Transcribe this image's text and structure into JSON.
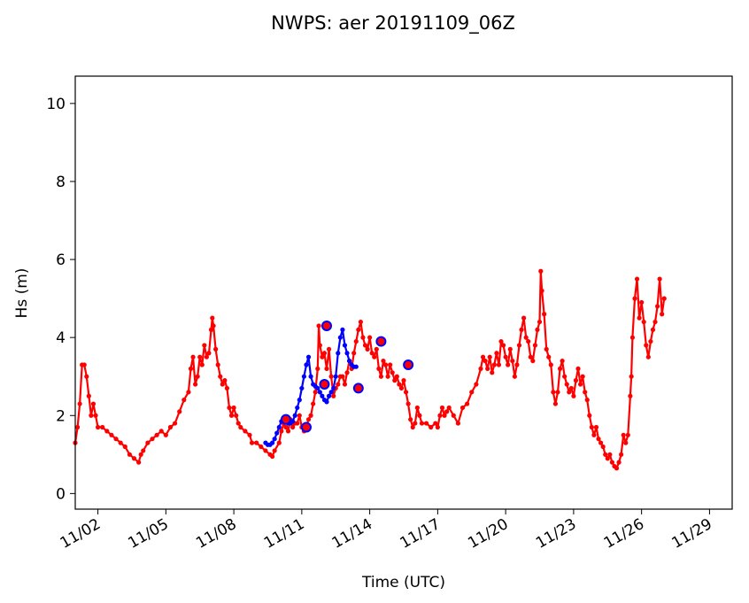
{
  "chart_data": {
    "type": "line",
    "title": "NWPS: aer 20191109_06Z",
    "xlabel": "Time (UTC)",
    "ylabel": "Hs (m)",
    "x_start": "2019-11-01",
    "xlim": [
      "2019-11-01",
      "2019-11-30"
    ],
    "ylim": [
      -0.4,
      10.7
    ],
    "x_ticks": [
      "11/02",
      "11/05",
      "11/08",
      "11/11",
      "11/14",
      "11/17",
      "11/20",
      "11/23",
      "11/26",
      "11/29"
    ],
    "y_ticks": [
      0,
      2,
      4,
      6,
      8,
      10
    ],
    "grid": false,
    "series": [
      {
        "color": "#ff0000",
        "marker": "small-dot",
        "points": [
          [
            0.0,
            1.3
          ],
          [
            0.1,
            1.7
          ],
          [
            0.2,
            2.3
          ],
          [
            0.3,
            3.3
          ],
          [
            0.4,
            3.3
          ],
          [
            0.5,
            3.0
          ],
          [
            0.6,
            2.5
          ],
          [
            0.7,
            2.0
          ],
          [
            0.8,
            2.3
          ],
          [
            0.9,
            2.0
          ],
          [
            1.0,
            1.7
          ],
          [
            1.2,
            1.7
          ],
          [
            1.4,
            1.6
          ],
          [
            1.6,
            1.5
          ],
          [
            1.8,
            1.4
          ],
          [
            2.0,
            1.3
          ],
          [
            2.2,
            1.2
          ],
          [
            2.4,
            1.0
          ],
          [
            2.6,
            0.9
          ],
          [
            2.8,
            0.8
          ],
          [
            2.9,
            1.0
          ],
          [
            3.0,
            1.1
          ],
          [
            3.2,
            1.3
          ],
          [
            3.4,
            1.4
          ],
          [
            3.6,
            1.5
          ],
          [
            3.8,
            1.6
          ],
          [
            4.0,
            1.5
          ],
          [
            4.2,
            1.7
          ],
          [
            4.4,
            1.8
          ],
          [
            4.6,
            2.1
          ],
          [
            4.8,
            2.4
          ],
          [
            5.0,
            2.6
          ],
          [
            5.1,
            3.2
          ],
          [
            5.2,
            3.5
          ],
          [
            5.3,
            2.8
          ],
          [
            5.4,
            3.0
          ],
          [
            5.5,
            3.5
          ],
          [
            5.6,
            3.3
          ],
          [
            5.7,
            3.8
          ],
          [
            5.8,
            3.5
          ],
          [
            5.9,
            3.6
          ],
          [
            6.0,
            4.2
          ],
          [
            6.05,
            4.5
          ],
          [
            6.1,
            4.3
          ],
          [
            6.2,
            3.7
          ],
          [
            6.3,
            3.3
          ],
          [
            6.4,
            3.0
          ],
          [
            6.5,
            2.8
          ],
          [
            6.6,
            2.9
          ],
          [
            6.7,
            2.7
          ],
          [
            6.8,
            2.2
          ],
          [
            6.9,
            2.0
          ],
          [
            7.0,
            2.2
          ],
          [
            7.1,
            2.0
          ],
          [
            7.2,
            1.8
          ],
          [
            7.3,
            1.7
          ],
          [
            7.5,
            1.6
          ],
          [
            7.7,
            1.5
          ],
          [
            7.8,
            1.3
          ],
          [
            8.0,
            1.3
          ],
          [
            8.2,
            1.2
          ],
          [
            8.4,
            1.1
          ],
          [
            8.6,
            1.0
          ],
          [
            8.7,
            0.95
          ],
          [
            8.8,
            1.1
          ],
          [
            9.0,
            1.3
          ],
          [
            9.1,
            1.6
          ],
          [
            9.2,
            1.8
          ],
          [
            9.3,
            1.7
          ],
          [
            9.4,
            1.6
          ],
          [
            9.5,
            1.9
          ],
          [
            9.6,
            1.7
          ],
          [
            9.7,
            1.8
          ],
          [
            9.8,
            1.8
          ],
          [
            9.9,
            2.0
          ],
          [
            10.0,
            1.7
          ],
          [
            10.1,
            1.6
          ],
          [
            10.2,
            1.7
          ],
          [
            10.3,
            1.9
          ],
          [
            10.4,
            2.0
          ],
          [
            10.5,
            2.3
          ],
          [
            10.6,
            2.6
          ],
          [
            10.7,
            3.2
          ],
          [
            10.75,
            4.3
          ],
          [
            10.8,
            3.8
          ],
          [
            10.9,
            3.5
          ],
          [
            11.0,
            3.6
          ],
          [
            11.1,
            3.2
          ],
          [
            11.2,
            3.7
          ],
          [
            11.3,
            3.0
          ],
          [
            11.4,
            2.5
          ],
          [
            11.5,
            2.7
          ],
          [
            11.6,
            2.8
          ],
          [
            11.7,
            3.0
          ],
          [
            11.8,
            3.0
          ],
          [
            11.9,
            2.8
          ],
          [
            12.0,
            3.1
          ],
          [
            12.1,
            3.4
          ],
          [
            12.2,
            3.2
          ],
          [
            12.3,
            3.6
          ],
          [
            12.4,
            3.9
          ],
          [
            12.5,
            4.2
          ],
          [
            12.6,
            4.4
          ],
          [
            12.7,
            4.0
          ],
          [
            12.8,
            3.8
          ],
          [
            12.9,
            3.7
          ],
          [
            13.0,
            4.0
          ],
          [
            13.1,
            3.6
          ],
          [
            13.2,
            3.5
          ],
          [
            13.3,
            3.7
          ],
          [
            13.4,
            3.2
          ],
          [
            13.5,
            3.0
          ],
          [
            13.6,
            3.4
          ],
          [
            13.7,
            3.3
          ],
          [
            13.8,
            3.0
          ],
          [
            13.9,
            3.3
          ],
          [
            14.0,
            3.1
          ],
          [
            14.1,
            2.9
          ],
          [
            14.2,
            3.0
          ],
          [
            14.3,
            2.8
          ],
          [
            14.4,
            2.7
          ],
          [
            14.5,
            2.9
          ],
          [
            14.6,
            2.6
          ],
          [
            14.7,
            2.3
          ],
          [
            14.8,
            1.9
          ],
          [
            14.9,
            1.7
          ],
          [
            15.0,
            1.8
          ],
          [
            15.1,
            2.2
          ],
          [
            15.2,
            2.0
          ],
          [
            15.3,
            1.8
          ],
          [
            15.5,
            1.8
          ],
          [
            15.7,
            1.7
          ],
          [
            15.9,
            1.8
          ],
          [
            16.0,
            1.7
          ],
          [
            16.1,
            2.0
          ],
          [
            16.2,
            2.2
          ],
          [
            16.3,
            2.0
          ],
          [
            16.4,
            2.1
          ],
          [
            16.5,
            2.2
          ],
          [
            16.7,
            2.0
          ],
          [
            16.9,
            1.8
          ],
          [
            17.1,
            2.2
          ],
          [
            17.3,
            2.3
          ],
          [
            17.5,
            2.6
          ],
          [
            17.7,
            2.8
          ],
          [
            17.9,
            3.2
          ],
          [
            18.0,
            3.5
          ],
          [
            18.1,
            3.4
          ],
          [
            18.2,
            3.2
          ],
          [
            18.3,
            3.5
          ],
          [
            18.4,
            3.1
          ],
          [
            18.5,
            3.3
          ],
          [
            18.6,
            3.6
          ],
          [
            18.7,
            3.3
          ],
          [
            18.8,
            3.9
          ],
          [
            18.9,
            3.8
          ],
          [
            19.0,
            3.5
          ],
          [
            19.1,
            3.3
          ],
          [
            19.2,
            3.7
          ],
          [
            19.3,
            3.4
          ],
          [
            19.4,
            3.0
          ],
          [
            19.5,
            3.3
          ],
          [
            19.6,
            3.8
          ],
          [
            19.7,
            4.2
          ],
          [
            19.8,
            4.5
          ],
          [
            19.9,
            4.0
          ],
          [
            20.0,
            3.9
          ],
          [
            20.1,
            3.5
          ],
          [
            20.2,
            3.4
          ],
          [
            20.3,
            3.8
          ],
          [
            20.4,
            4.2
          ],
          [
            20.5,
            4.4
          ],
          [
            20.55,
            5.7
          ],
          [
            20.6,
            5.2
          ],
          [
            20.7,
            4.6
          ],
          [
            20.8,
            3.7
          ],
          [
            20.9,
            3.5
          ],
          [
            21.0,
            3.3
          ],
          [
            21.1,
            2.6
          ],
          [
            21.2,
            2.3
          ],
          [
            21.3,
            2.6
          ],
          [
            21.4,
            3.2
          ],
          [
            21.5,
            3.4
          ],
          [
            21.6,
            3.0
          ],
          [
            21.7,
            2.8
          ],
          [
            21.8,
            2.6
          ],
          [
            21.9,
            2.7
          ],
          [
            22.0,
            2.5
          ],
          [
            22.1,
            2.9
          ],
          [
            22.2,
            3.2
          ],
          [
            22.3,
            2.8
          ],
          [
            22.4,
            3.0
          ],
          [
            22.5,
            2.6
          ],
          [
            22.6,
            2.4
          ],
          [
            22.7,
            2.0
          ],
          [
            22.8,
            1.7
          ],
          [
            22.9,
            1.5
          ],
          [
            23.0,
            1.7
          ],
          [
            23.1,
            1.4
          ],
          [
            23.2,
            1.3
          ],
          [
            23.3,
            1.2
          ],
          [
            23.4,
            1.0
          ],
          [
            23.5,
            0.9
          ],
          [
            23.6,
            1.0
          ],
          [
            23.7,
            0.8
          ],
          [
            23.8,
            0.7
          ],
          [
            23.9,
            0.65
          ],
          [
            24.0,
            0.8
          ],
          [
            24.1,
            1.0
          ],
          [
            24.2,
            1.5
          ],
          [
            24.3,
            1.3
          ],
          [
            24.4,
            1.5
          ],
          [
            24.5,
            2.5
          ],
          [
            24.55,
            3.0
          ],
          [
            24.6,
            4.0
          ],
          [
            24.7,
            5.0
          ],
          [
            24.8,
            5.5
          ],
          [
            24.9,
            4.5
          ],
          [
            25.0,
            4.9
          ],
          [
            25.1,
            4.4
          ],
          [
            25.2,
            3.8
          ],
          [
            25.3,
            3.5
          ],
          [
            25.4,
            3.9
          ],
          [
            25.5,
            4.2
          ],
          [
            25.6,
            4.4
          ],
          [
            25.7,
            4.8
          ],
          [
            25.8,
            5.5
          ],
          [
            25.9,
            4.6
          ],
          [
            26.0,
            5.0
          ]
        ]
      },
      {
        "color": "#0000ff",
        "marker": "small-dot",
        "points": [
          [
            8.4,
            1.3
          ],
          [
            8.5,
            1.25
          ],
          [
            8.6,
            1.25
          ],
          [
            8.7,
            1.3
          ],
          [
            8.8,
            1.4
          ],
          [
            8.9,
            1.55
          ],
          [
            9.0,
            1.7
          ],
          [
            9.1,
            1.85
          ],
          [
            9.2,
            1.9
          ],
          [
            9.3,
            1.85
          ],
          [
            9.4,
            1.8
          ],
          [
            9.5,
            1.8
          ],
          [
            9.6,
            1.85
          ],
          [
            9.7,
            2.0
          ],
          [
            9.8,
            2.2
          ],
          [
            9.9,
            2.4
          ],
          [
            10.0,
            2.7
          ],
          [
            10.1,
            3.0
          ],
          [
            10.2,
            3.3
          ],
          [
            10.3,
            3.5
          ],
          [
            10.4,
            3.0
          ],
          [
            10.5,
            2.8
          ],
          [
            10.6,
            2.75
          ],
          [
            10.7,
            2.7
          ],
          [
            10.8,
            2.6
          ],
          [
            10.9,
            2.5
          ],
          [
            11.0,
            2.4
          ],
          [
            11.1,
            2.35
          ],
          [
            11.2,
            2.5
          ],
          [
            11.3,
            2.6
          ],
          [
            11.4,
            2.7
          ],
          [
            11.5,
            3.0
          ],
          [
            11.6,
            3.6
          ],
          [
            11.7,
            4.0
          ],
          [
            11.8,
            4.2
          ],
          [
            11.9,
            3.8
          ],
          [
            12.0,
            3.6
          ],
          [
            12.1,
            3.4
          ],
          [
            12.2,
            3.3
          ],
          [
            12.3,
            3.25
          ],
          [
            12.4,
            3.25
          ]
        ]
      }
    ],
    "highlight_points": [
      [
        9.3,
        1.9
      ],
      [
        10.2,
        1.7
      ],
      [
        11.1,
        4.3
      ],
      [
        11.0,
        2.8
      ],
      [
        12.5,
        2.7
      ],
      [
        13.5,
        3.9
      ],
      [
        14.7,
        3.3
      ]
    ]
  }
}
